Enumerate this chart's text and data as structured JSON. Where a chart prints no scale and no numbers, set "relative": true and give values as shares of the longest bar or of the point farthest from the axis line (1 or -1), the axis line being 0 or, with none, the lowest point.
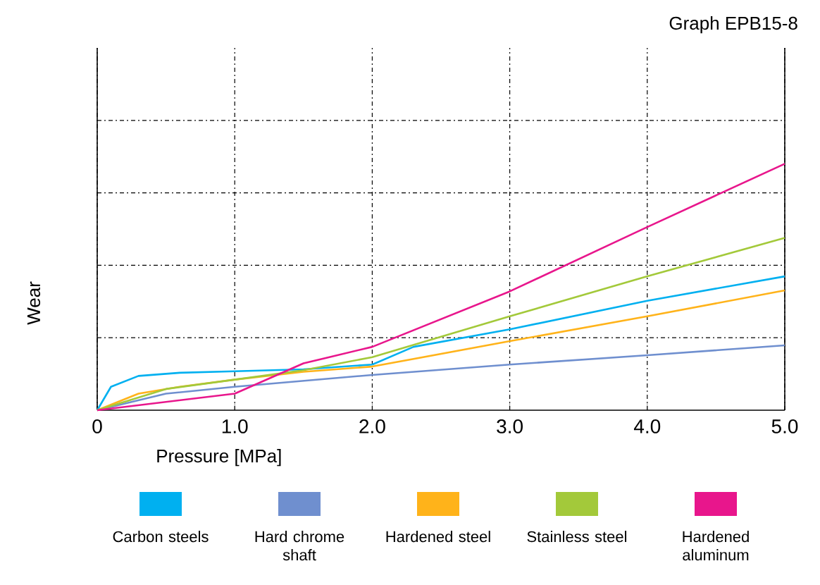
{
  "chart_data": {
    "type": "line",
    "title": "Graph EPB15-8",
    "xlabel": "Pressure  [MPa]",
    "ylabel": "Wear",
    "relative": true,
    "grid": true,
    "legend": "bottom",
    "tick_labels": "x",
    "marker": "none",
    "xlim": [
      0,
      5
    ],
    "xticks": [
      0,
      {
        "value": 1,
        "label": "1.0"
      },
      {
        "value": 2,
        "label": "2.0"
      },
      {
        "value": 3,
        "label": "3.0"
      },
      {
        "value": 4,
        "label": "4.0"
      },
      {
        "value": 5,
        "label": "5.0"
      }
    ],
    "series": [
      {
        "name": "Carbon steels",
        "color": "#00b0f0",
        "x": [
          0,
          0.1,
          0.3,
          0.6,
          1,
          1.5,
          2,
          2.3,
          3,
          4,
          5
        ],
        "values": [
          0,
          0.095,
          0.139,
          0.152,
          0.158,
          0.166,
          0.185,
          0.257,
          0.328,
          0.444,
          0.543
        ]
      },
      {
        "name": "Hard chrome shaft",
        "color": "#6f8fcf",
        "x": [
          0,
          0.5,
          1,
          2,
          3,
          4,
          5
        ],
        "values": [
          0,
          0.067,
          0.095,
          0.143,
          0.185,
          0.223,
          0.263
        ]
      },
      {
        "name": "Hardened steel",
        "color": "#ffb31a",
        "x": [
          0,
          0.3,
          0.6,
          1,
          1.5,
          2,
          3,
          4,
          5
        ],
        "values": [
          0,
          0.067,
          0.095,
          0.124,
          0.156,
          0.177,
          0.28,
          0.381,
          0.486
        ]
      },
      {
        "name": "Stainless steel",
        "color": "#a3c93a",
        "x": [
          0,
          0.5,
          1,
          1.5,
          2,
          3,
          4,
          5
        ],
        "values": [
          0,
          0.086,
          0.124,
          0.162,
          0.215,
          0.381,
          0.543,
          0.699
        ]
      },
      {
        "name": "Hardened aluminum",
        "color": "#e8168c",
        "x": [
          0,
          1,
          1.5,
          2,
          3,
          4,
          5
        ],
        "values": [
          0,
          0.067,
          0.19,
          0.257,
          0.482,
          0.743,
          1.0
        ]
      }
    ]
  }
}
